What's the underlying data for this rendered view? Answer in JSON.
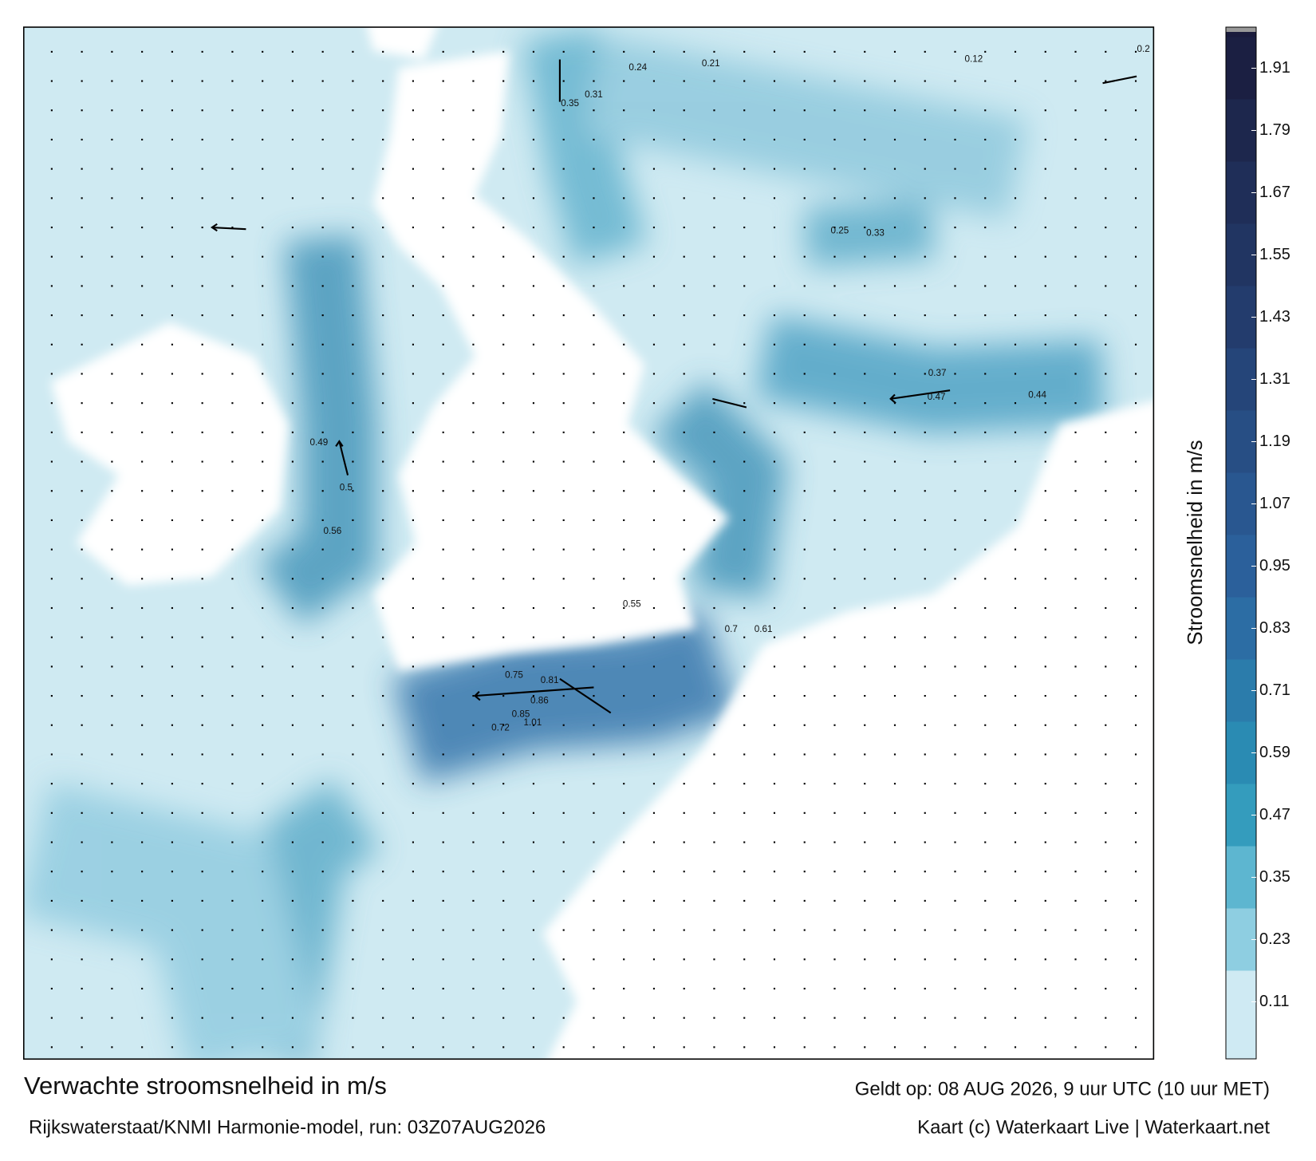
{
  "map": {
    "title": "Verwachte stroomsnelheid in m/s",
    "subtitle": "Rijkswaterstaat/KNMI Harmonie-model, run: 03Z07AUG2026",
    "valid_time": "Geldt op: 08 AUG 2026, 9 uur UTC (10 uur MET)",
    "credit": "Kaart (c) Waterkaart Live | Waterkaart.net",
    "colorbar": {
      "label": "Stroomsnelheid in m/s",
      "lim": [
        0,
        1.98
      ],
      "ticks": [
        0.11,
        0.23,
        0.35,
        0.47,
        0.59,
        0.71,
        0.83,
        0.95,
        1.07,
        1.19,
        1.31,
        1.43,
        1.55,
        1.67,
        1.79,
        1.91
      ]
    },
    "current_labels": [
      "1.01",
      "0.86",
      "0.85",
      "0.81",
      "0.75",
      "0.72",
      "0.5",
      "0.49",
      "0.56",
      "0.55",
      "0.61",
      "0.7",
      "0.47",
      "0.44",
      "0.37",
      "0.33",
      "0.25",
      "0.31",
      "0.35",
      "0.24",
      "0.21",
      "0.12",
      "0.2"
    ]
  }
}
